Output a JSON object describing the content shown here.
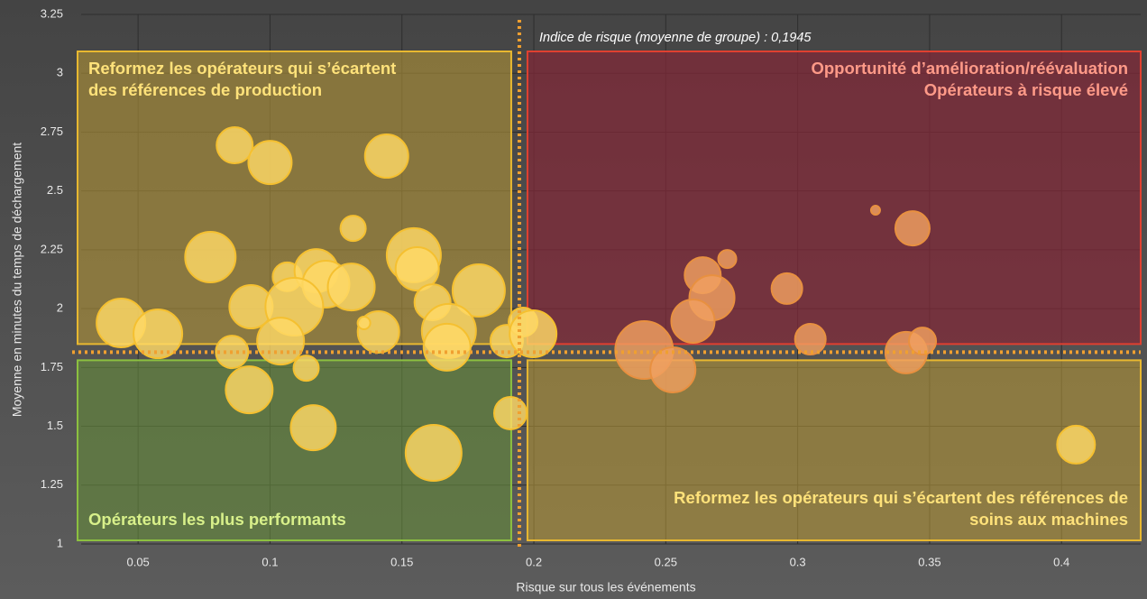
{
  "chart_data": {
    "type": "bubble",
    "x_label": "Risque sur tous les événements",
    "y_label": "Moyenne en minutes du temps de déchargement",
    "annotation": "Indice de risque (moyenne de groupe) : 0,1945",
    "reference_lines": {
      "x": 0.1945,
      "y": 1.815,
      "color": "#f0a030"
    },
    "quadrants": {
      "top_left": {
        "lines": [
          "Reformez les opérateurs qui s’écartent",
          "des références de production"
        ],
        "color": "#e8b830"
      },
      "top_right": {
        "lines": [
          "Opportunité d’amélioration/réévaluation",
          "Opérateurs à risque élevé"
        ],
        "color": "#e04030"
      },
      "bottom_left": {
        "lines": [
          "Opérateurs les plus performants"
        ],
        "color": "#8cc040"
      },
      "bottom_right": {
        "lines": [
          "Reformez les opérateurs qui s’écartent des références de",
          "soins aux machines"
        ],
        "color": "#e8b830"
      }
    },
    "xlim": [
      0.025,
      0.43
    ],
    "ylim": [
      1,
      3.25
    ],
    "xticks": [
      0.05,
      0.1,
      0.15,
      0.2,
      0.25,
      0.3,
      0.35,
      0.4
    ],
    "yticks": [
      1,
      1.25,
      1.5,
      1.75,
      2,
      2.25,
      2.5,
      2.75,
      3,
      3.25
    ],
    "grid": true,
    "series": [
      {
        "color": "#ffd966",
        "x": [
          0.0866,
          0.1,
          0.1442,
          0.1315,
          0.0774,
          0.1065,
          0.1175,
          0.1212,
          0.1308,
          0.0928,
          0.1092,
          0.0435,
          0.0575,
          0.104,
          0.1411,
          0.1356,
          0.1545,
          0.1558,
          0.1616,
          0.1791,
          0.1678,
          0.1671,
          0.0856,
          0.0921,
          0.1137,
          0.1164,
          0.162,
          0.1911,
          0.1897,
          0.1959,
          0.1997,
          0.4055
        ],
        "values": [
          2.694,
          2.621,
          2.648,
          2.341,
          2.219,
          2.135,
          2.161,
          2.104,
          2.092,
          2.008,
          2.008,
          1.939,
          1.893,
          1.862,
          1.901,
          1.939,
          2.227,
          2.169,
          2.027,
          2.077,
          1.905,
          1.836,
          1.816,
          1.655,
          1.747,
          1.494,
          1.387,
          1.556,
          1.862,
          1.943,
          1.893,
          1.422
        ],
        "sizes": [
          20,
          24,
          24,
          14,
          28,
          16,
          24,
          26,
          26,
          24,
          32,
          27,
          27,
          26,
          23,
          7,
          30,
          24,
          20,
          29,
          30,
          26,
          18,
          26,
          14,
          25,
          31,
          18,
          18,
          16,
          26,
          21
        ]
      },
      {
        "color": "#f0a060",
        "x": [
          0.3295,
          0.3435,
          0.2733,
          0.264,
          0.2675,
          0.2603,
          0.2959,
          0.3048,
          0.2418,
          0.2527,
          0.3411,
          0.3473
        ],
        "values": [
          2.418,
          2.341,
          2.211,
          2.142,
          2.046,
          1.947,
          2.085,
          1.87,
          1.824,
          1.74,
          1.813,
          1.862
        ],
        "sizes": [
          5,
          19,
          10,
          20,
          25,
          24,
          17,
          17,
          32,
          25,
          23,
          15
        ]
      }
    ]
  }
}
